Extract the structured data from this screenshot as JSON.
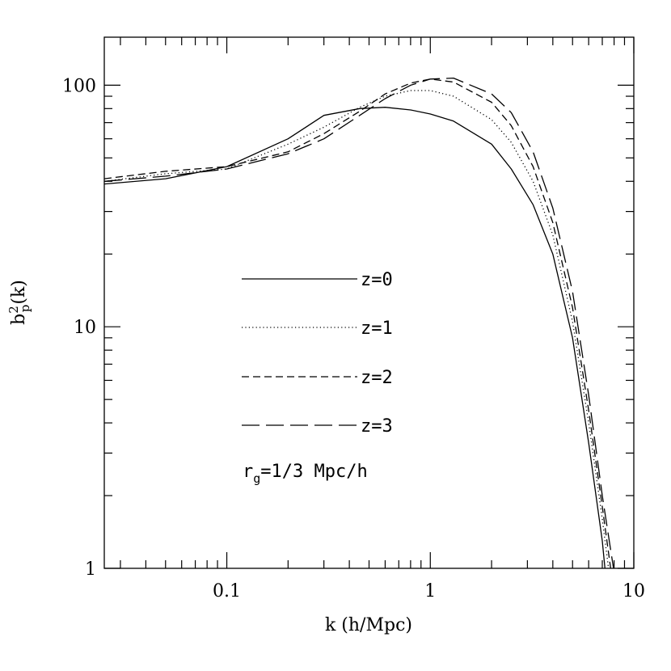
{
  "chart_data": {
    "type": "line",
    "x_scale": "log",
    "y_scale": "log",
    "xlim": [
      0.025,
      10
    ],
    "ylim": [
      1,
      158
    ],
    "xlabel": "k (h/Mpc)",
    "ylabel": {
      "base": "b",
      "superscript": "2",
      "subscript": "p",
      "suffix": "(k)"
    },
    "x_ticks": [
      {
        "value": 0.1,
        "label": "0.1"
      },
      {
        "value": 1,
        "label": "1"
      },
      {
        "value": 10,
        "label": "10"
      }
    ],
    "y_ticks": [
      {
        "value": 1,
        "label": "1"
      },
      {
        "value": 10,
        "label": "10"
      },
      {
        "value": 100,
        "label": "100"
      }
    ],
    "grid": false,
    "legend_position": "center-left, inside plot",
    "annotation": {
      "base": "r",
      "subscript": "g",
      "rest": "=1/3 Mpc/h"
    },
    "series": [
      {
        "name": "z=0",
        "dash": "solid",
        "x": [
          0.025,
          0.05,
          0.1,
          0.2,
          0.3,
          0.45,
          0.6,
          0.8,
          1.0,
          1.3,
          2.0,
          2.5,
          3.2,
          4.0,
          5.0,
          6.0,
          7.0,
          7.4
        ],
        "y": [
          39,
          41,
          46,
          60,
          75,
          80,
          81,
          79,
          76,
          71,
          57,
          45,
          32,
          20,
          9.0,
          3.3,
          1.3,
          0.8
        ]
      },
      {
        "name": "z=1",
        "dash": "dotted",
        "x": [
          0.025,
          0.05,
          0.1,
          0.2,
          0.3,
          0.45,
          0.6,
          0.8,
          1.0,
          1.3,
          2.0,
          2.5,
          3.2,
          4.0,
          5.0,
          6.0,
          7.0,
          7.7
        ],
        "y": [
          40,
          43,
          45,
          57,
          67,
          81,
          90,
          95,
          95,
          90,
          72,
          58,
          40,
          24,
          10.5,
          4.0,
          1.6,
          0.85
        ]
      },
      {
        "name": "z=2",
        "dash": "short-dash",
        "x": [
          0.025,
          0.05,
          0.1,
          0.2,
          0.3,
          0.45,
          0.6,
          0.8,
          1.0,
          1.3,
          2.0,
          2.5,
          3.2,
          4.0,
          5.0,
          6.0,
          7.0,
          7.9
        ],
        "y": [
          41,
          44,
          46,
          53,
          63,
          78,
          92,
          102,
          106,
          103,
          85,
          68,
          46,
          27,
          12,
          4.5,
          1.8,
          0.85
        ]
      },
      {
        "name": "z=3",
        "dash": "long-dash",
        "x": [
          0.025,
          0.05,
          0.1,
          0.2,
          0.3,
          0.45,
          0.6,
          0.8,
          1.0,
          1.3,
          2.0,
          2.5,
          3.2,
          4.0,
          5.0,
          6.0,
          7.0,
          8.1
        ],
        "y": [
          40,
          42,
          45,
          52,
          60,
          75,
          88,
          100,
          106,
          107,
          92,
          77,
          53,
          31,
          14,
          5.2,
          2.0,
          0.9
        ]
      }
    ]
  }
}
